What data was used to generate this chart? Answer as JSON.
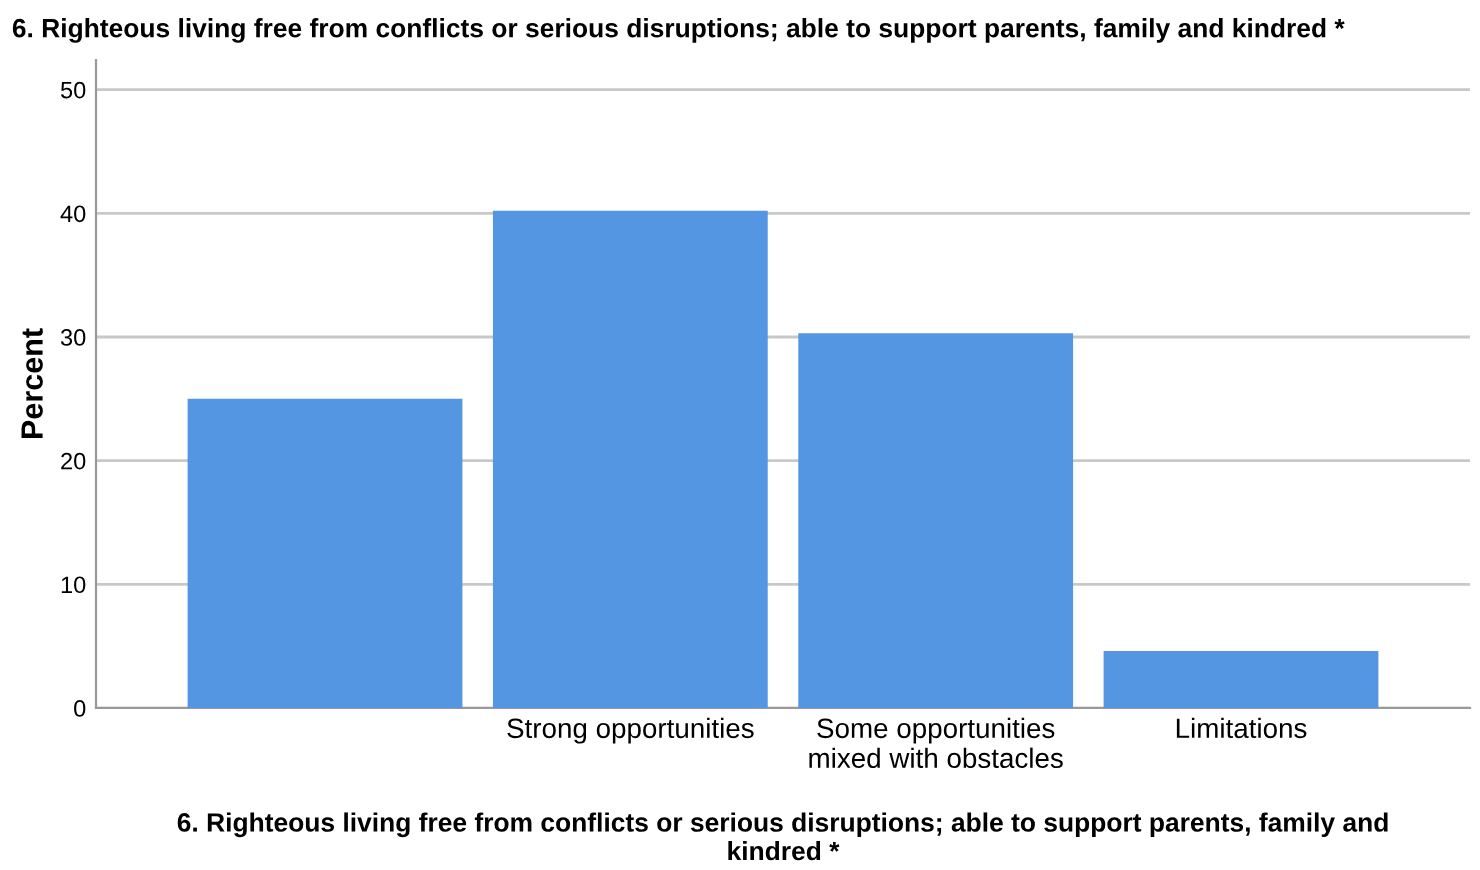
{
  "chart_data": {
    "type": "bar",
    "title": "6. Righteous living free from conflicts or serious disruptions; able to support parents, family and kindred *",
    "xlabel": "6. Righteous living free from conflicts or serious disruptions; able to support parents, family and\nkindred *",
    "ylabel": "Percent",
    "categories": [
      null,
      "Strong opportunities",
      "Some opportunities\nmixed with obstacles",
      "Limitations"
    ],
    "values": [
      25.0,
      40.2,
      30.3,
      4.6
    ],
    "color": "#5596e3",
    "ylim": [
      0,
      52.4
    ],
    "yticks": [
      0,
      10,
      20,
      30,
      40,
      50
    ],
    "grid": "y"
  }
}
